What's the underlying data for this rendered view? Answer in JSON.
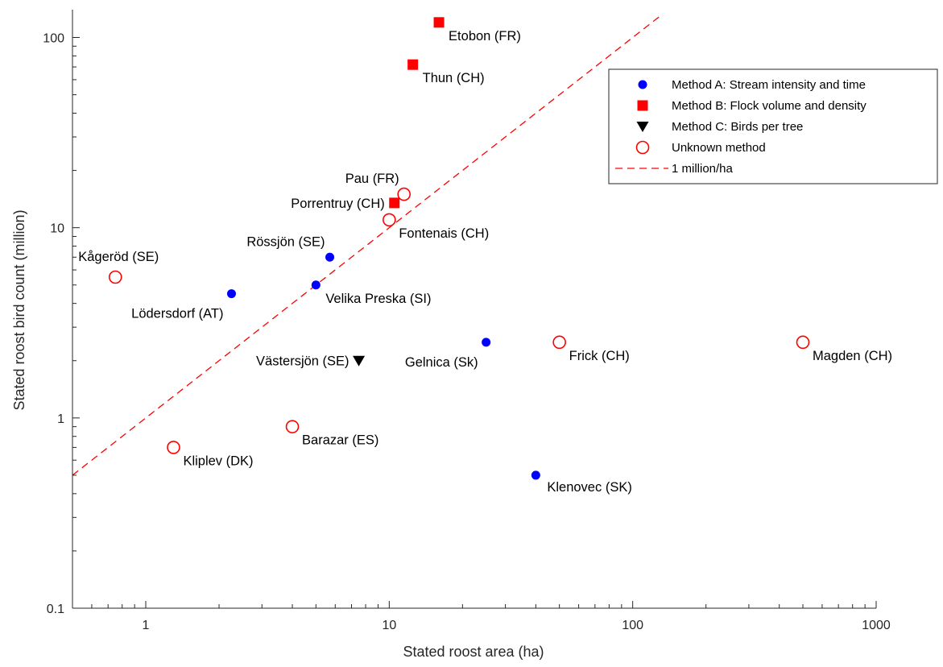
{
  "chart_data": {
    "type": "scatter",
    "xlabel": "Stated roost area (ha)",
    "ylabel": "Stated roost bird count (million)",
    "xscale": "log",
    "yscale": "log",
    "xlim": [
      0.5,
      1000
    ],
    "ylim": [
      0.1,
      140
    ],
    "xticks": [
      {
        "value": 1,
        "label": "1"
      },
      {
        "value": 10,
        "label": "10"
      },
      {
        "value": 100,
        "label": "100"
      },
      {
        "value": 1000,
        "label": "1000"
      }
    ],
    "yticks": [
      {
        "value": 0.1,
        "label": "0.1"
      },
      {
        "value": 1,
        "label": "1"
      },
      {
        "value": 10,
        "label": "10"
      },
      {
        "value": 100,
        "label": "100"
      }
    ],
    "grid": false,
    "legend_position": "top-right",
    "series": [
      {
        "name": "Method A: Stream intensity and time",
        "marker": "filled-circle",
        "color": "#0000ff",
        "points": [
          {
            "x": 2.25,
            "y": 4.5,
            "label": "Lödersdorf (AT)",
            "label_pos": "below-left"
          },
          {
            "x": 5.7,
            "y": 7.0,
            "label": "Rössjön (SE)",
            "label_pos": "above-left"
          },
          {
            "x": 5.0,
            "y": 5.0,
            "label": "Velika Preska (SI)",
            "label_pos": "below-right"
          },
          {
            "x": 25,
            "y": 2.5,
            "label": "Gelnica (Sk)",
            "label_pos": "below-left"
          },
          {
            "x": 40,
            "y": 0.5,
            "label": "Klenovec (SK)",
            "label_pos": "right"
          }
        ]
      },
      {
        "name": "Method B: Flock volume and density",
        "marker": "filled-square",
        "color": "#ff0000",
        "points": [
          {
            "x": 16,
            "y": 120,
            "label": "Etobon (FR)",
            "label_pos": "below-right"
          },
          {
            "x": 12.5,
            "y": 72,
            "label": "Thun (CH)",
            "label_pos": "below-right"
          },
          {
            "x": 10.5,
            "y": 13.5,
            "label": "Porrentruy (CH)",
            "label_pos": "left"
          }
        ]
      },
      {
        "name": "Method C: Birds per tree",
        "marker": "filled-triangle-down",
        "color": "#000000",
        "points": [
          {
            "x": 7.5,
            "y": 2.0,
            "label": "Västersjön (SE)",
            "label_pos": "left"
          }
        ]
      },
      {
        "name": "Unknown method",
        "marker": "open-circle",
        "color": "#ff0000",
        "points": [
          {
            "x": 0.75,
            "y": 5.5,
            "label": "Kågeröd (SE)",
            "label_pos": "above"
          },
          {
            "x": 11.5,
            "y": 15,
            "label": "Pau (FR)",
            "label_pos": "above-left"
          },
          {
            "x": 10,
            "y": 11,
            "label": "Fontenais (CH)",
            "label_pos": "below-right"
          },
          {
            "x": 4.0,
            "y": 0.9,
            "label": "Barazar (ES)",
            "label_pos": "below-right"
          },
          {
            "x": 1.3,
            "y": 0.7,
            "label": "Kliplev (DK)",
            "label_pos": "below-right"
          },
          {
            "x": 50,
            "y": 2.5,
            "label": "Frick (CH)",
            "label_pos": "below-right"
          },
          {
            "x": 500,
            "y": 2.5,
            "label": "Magden (CH)",
            "label_pos": "below-right"
          }
        ]
      }
    ],
    "reference_line": {
      "name": "1 million/ha",
      "style": "dashed",
      "color": "#ff0000",
      "x": [
        0.5,
        130
      ],
      "y": [
        0.5,
        130
      ]
    }
  }
}
